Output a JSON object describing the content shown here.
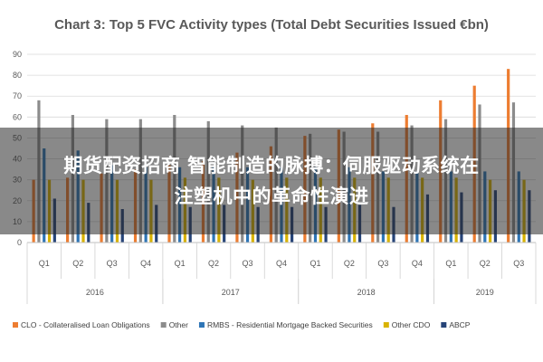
{
  "chart_data": {
    "type": "bar",
    "title": "Chart 3: Top 5 FVC Activity types (Total Debt Securities Issued €bn)",
    "xlabel": "",
    "ylabel": "",
    "ylim": [
      0,
      90
    ],
    "y_ticks": [
      0,
      10,
      20,
      30,
      40,
      50,
      60,
      70,
      80,
      90
    ],
    "grid": true,
    "legend_position": "bottom",
    "categories": [
      "Q1",
      "Q2",
      "Q3",
      "Q4",
      "Q1",
      "Q2",
      "Q3",
      "Q4",
      "Q1",
      "Q2",
      "Q3",
      "Q4",
      "Q1",
      "Q2",
      "Q3"
    ],
    "groups": [
      {
        "label": "2016",
        "count": 4
      },
      {
        "label": "2017",
        "count": 4
      },
      {
        "label": "2018",
        "count": 4
      },
      {
        "label": "2019",
        "count": 3
      }
    ],
    "series": [
      {
        "name": "CLO - Collateralised Loan Obligations",
        "color": "#ed7d31",
        "values": [
          30,
          31,
          33,
          35,
          37,
          39,
          43,
          46,
          51,
          54,
          57,
          61,
          68,
          75,
          83
        ]
      },
      {
        "name": "Other",
        "color": "#8c8c8c",
        "values": [
          68,
          61,
          59,
          59,
          61,
          58,
          56,
          55,
          52,
          53,
          53,
          56,
          59,
          66,
          67
        ]
      },
      {
        "name": "RMBS - Residential Mortgage Backed Securities",
        "color": "#2e75b6",
        "values": [
          45,
          44,
          37,
          36,
          36,
          36,
          36,
          36,
          36,
          36,
          34,
          34,
          34,
          34,
          34
        ]
      },
      {
        "name": "Other CDO",
        "color": "#d9b300",
        "values": [
          30,
          30,
          30,
          30,
          31,
          31,
          30,
          31,
          31,
          31,
          31,
          31,
          31,
          30,
          30
        ]
      },
      {
        "name": "ABCP",
        "color": "#264478",
        "values": [
          21,
          19,
          16,
          18,
          17,
          18,
          17,
          17,
          17,
          18,
          17,
          23,
          24,
          25,
          25
        ]
      }
    ]
  },
  "overlay": {
    "line1": "期货配资招商 智能制造的脉搏：伺服驱动系统在",
    "line2": "注塑机中的革命性演进"
  }
}
